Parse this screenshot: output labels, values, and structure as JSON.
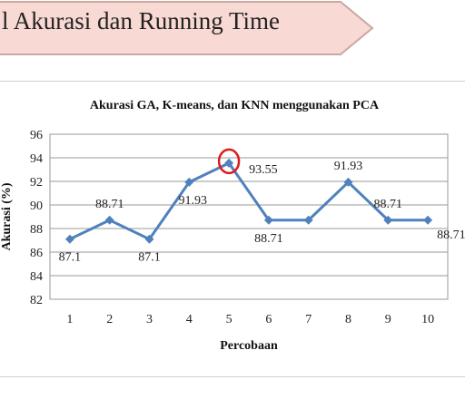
{
  "slide": {
    "banner_title": "l Akurasi dan Running Time",
    "banner_fill": "#f8d9d4",
    "banner_stroke": "#c9a8a2"
  },
  "chart_data": {
    "type": "line",
    "title": "Akurasi GA, K-means, dan KNN menggunakan PCA",
    "xlabel": "Percobaan",
    "ylabel": "Akurasi (%)",
    "x": [
      1,
      2,
      3,
      4,
      5,
      6,
      7,
      8,
      9,
      10
    ],
    "series": [
      {
        "values": [
          87.1,
          88.71,
          87.1,
          91.93,
          93.55,
          88.71,
          88.71,
          91.93,
          88.71,
          88.71
        ]
      }
    ],
    "data_labels": [
      "87.1",
      "88.71",
      "87.1",
      "91.93",
      "93.55",
      "88.71",
      "",
      "91.93",
      "88.71",
      "88.71"
    ],
    "ylim": [
      82,
      96
    ],
    "yticks": [
      82,
      84,
      86,
      88,
      90,
      92,
      94,
      96
    ],
    "grid": true,
    "line_color": "#4f81bd",
    "highlight_point": 5,
    "highlight_color": "#e0191b"
  }
}
